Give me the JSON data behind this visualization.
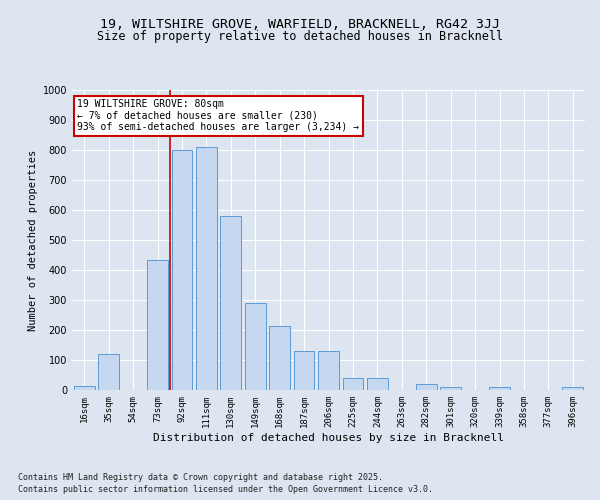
{
  "title1": "19, WILTSHIRE GROVE, WARFIELD, BRACKNELL, RG42 3JJ",
  "title2": "Size of property relative to detached houses in Bracknell",
  "xlabel": "Distribution of detached houses by size in Bracknell",
  "ylabel": "Number of detached properties",
  "categories": [
    "16sqm",
    "35sqm",
    "54sqm",
    "73sqm",
    "92sqm",
    "111sqm",
    "130sqm",
    "149sqm",
    "168sqm",
    "187sqm",
    "206sqm",
    "225sqm",
    "244sqm",
    "263sqm",
    "282sqm",
    "301sqm",
    "320sqm",
    "339sqm",
    "358sqm",
    "377sqm",
    "396sqm"
  ],
  "values": [
    15,
    120,
    0,
    435,
    800,
    810,
    580,
    290,
    215,
    130,
    130,
    40,
    40,
    0,
    20,
    10,
    0,
    10,
    0,
    0,
    10
  ],
  "bar_color": "#c5d8f0",
  "bar_edge_color": "#5b9bd5",
  "bar_width": 0.85,
  "vline_x": 3.5,
  "vline_color": "#cc0000",
  "annotation_text": "19 WILTSHIRE GROVE: 80sqm\n← 7% of detached houses are smaller (230)\n93% of semi-detached houses are larger (3,234) →",
  "annotation_box_color": "#ffffff",
  "annotation_box_edge": "#cc0000",
  "ylim": [
    0,
    1000
  ],
  "yticks": [
    0,
    100,
    200,
    300,
    400,
    500,
    600,
    700,
    800,
    900,
    1000
  ],
  "background_color": "#dde6f0",
  "footer1": "Contains HM Land Registry data © Crown copyright and database right 2025.",
  "footer2": "Contains public sector information licensed under the Open Government Licence v3.0.",
  "title_fontsize": 9.5,
  "subtitle_fontsize": 8.5,
  "axis_label_fontsize": 7.5,
  "tick_fontsize": 6.5,
  "annotation_fontsize": 7,
  "footer_fontsize": 6
}
